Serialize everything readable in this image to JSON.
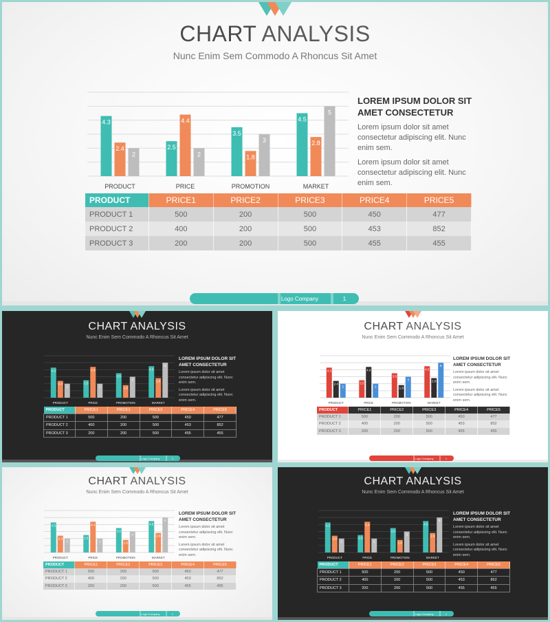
{
  "slide": {
    "title_part1": "CHART",
    "title_part2": " ANALYSIS",
    "subtitle": "Nunc Enim Sem Commodo A Rhoncus Sit Amet",
    "side_heading": "LOREM IPSUM DOLOR SIT AMET CONSECTETUR",
    "side_paragraph_1": "Lorem ipsum dolor sit amet consectetur adipiscing elit. Nunc enim sem.",
    "side_paragraph_2": "Lorem ipsum dolor sit amet consectetur adipiscing elit. Nunc enim sem.",
    "footer_company": "Logo Company",
    "footer_page": "1"
  },
  "table": {
    "headers": [
      "PRODUCT",
      "PRICE1",
      "PRICE2",
      "PRICE3",
      "PRICE4",
      "PRICE5"
    ],
    "rows": [
      [
        "PRODUCT 1",
        "500",
        "200",
        "500",
        "450",
        "477"
      ],
      [
        "PRODUCT 2",
        "400",
        "200",
        "500",
        "453",
        "852"
      ],
      [
        "PRODUCT 3",
        "200",
        "200",
        "500",
        "455",
        "455"
      ]
    ]
  },
  "chart_data": {
    "type": "bar",
    "categories": [
      "PRODUCT",
      "PRICE",
      "PROMOTION",
      "MARKET"
    ],
    "series": [
      {
        "values": [
          4.3,
          2.5,
          3.5,
          4.5
        ]
      },
      {
        "values": [
          2.4,
          4.4,
          1.8,
          2.8
        ]
      },
      {
        "values": [
          2,
          2,
          3,
          5
        ]
      }
    ],
    "ylim": [
      0,
      6
    ],
    "grid": true,
    "legend": "none"
  },
  "themes": {
    "teal_orange_light": {
      "s1": "#3fbdb3",
      "s2": "#f08a58",
      "s3": "#bdbdbd",
      "header_first": "#3fbdb3",
      "header_rest": "#f08a58",
      "row_a": "#e6e6e6",
      "row_b": "#d4d4d4",
      "text": "#666666",
      "pill": "#3fbdb3",
      "deco": [
        "#4fc0b5",
        "#f08a58",
        "#7fd0c8"
      ]
    },
    "teal_orange_dark": {
      "s1": "#3fbdb3",
      "s2": "#f08a58",
      "s3": "#bdbdbd",
      "header_first": "#3fbdb3",
      "header_rest": "#f08a58",
      "row_a": "#262626",
      "row_b": "#262626",
      "text": "#f2f2f2",
      "pill": "#3fbdb3",
      "deco": [
        "#4fc0b5",
        "#f08a58",
        "#7fd0c8"
      ]
    },
    "red_dark_blue": {
      "s1": "#e0443a",
      "s2": "#2f2f2f",
      "s3": "#4a90d9",
      "header_first": "#e0443a",
      "header_rest": "#2f2f2f",
      "row_a": "#e6e6e6",
      "row_b": "#d4d4d4",
      "text": "#666666",
      "pill": "#e0443a",
      "deco": [
        "#e0443a",
        "#f08a58",
        "#f4a98b"
      ]
    }
  }
}
